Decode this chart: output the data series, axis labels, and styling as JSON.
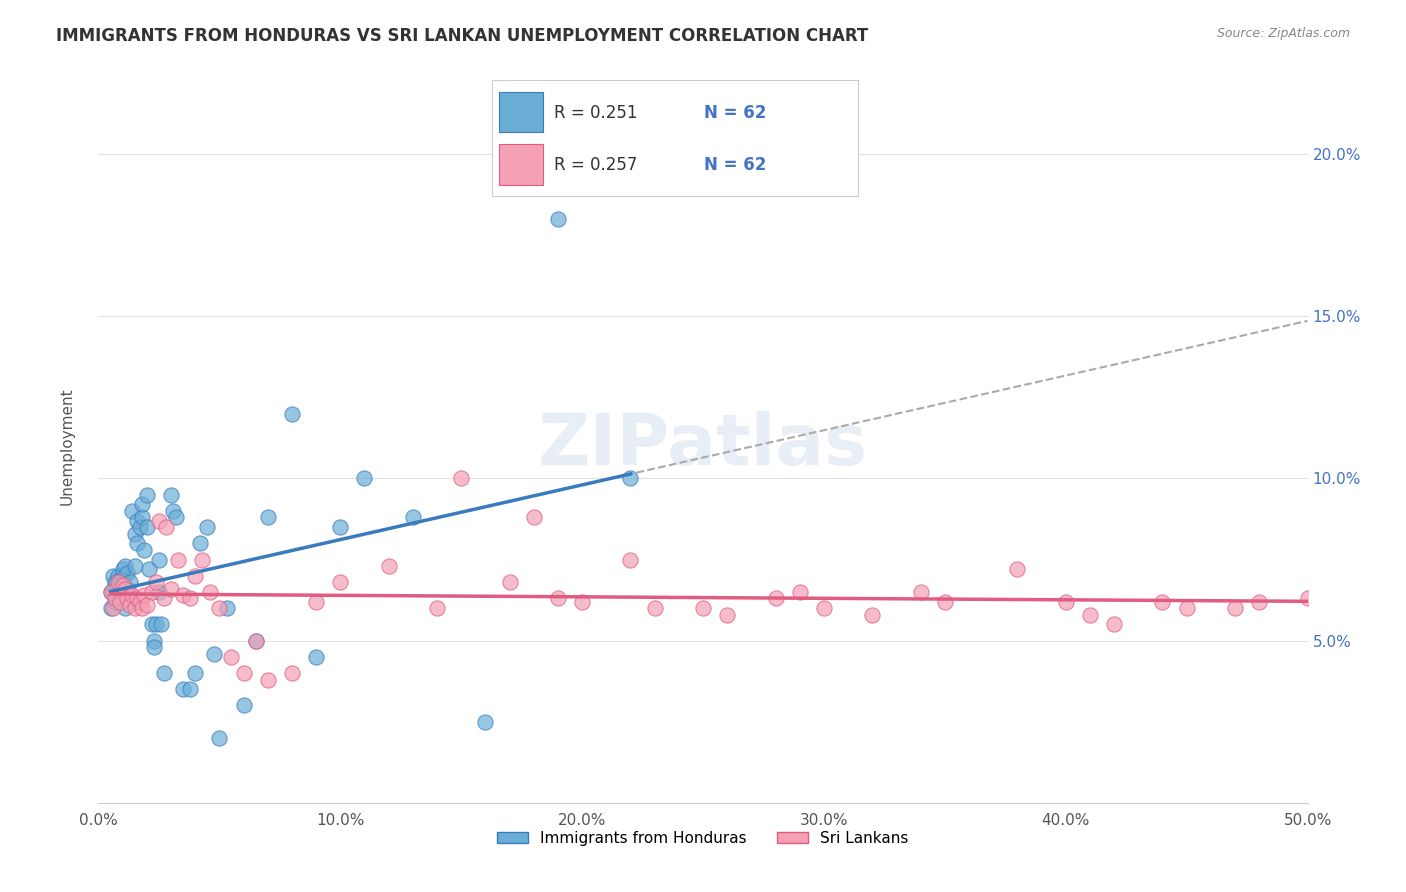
{
  "title": "IMMIGRANTS FROM HONDURAS VS SRI LANKAN UNEMPLOYMENT CORRELATION CHART",
  "source": "Source: ZipAtlas.com",
  "xlabel": "",
  "ylabel": "Unemployment",
  "legend_label1": "Immigrants from Honduras",
  "legend_label2": "Sri Lankans",
  "legend_r1": "R = 0.251",
  "legend_n1": "N = 62",
  "legend_r2": "R = 0.257",
  "legend_n2": "N = 62",
  "color_blue": "#6aaed6",
  "color_pink": "#f4a0b5",
  "color_blue_line": "#3a7abf",
  "color_pink_line": "#e05c80",
  "color_dashed": "#aaaaaa",
  "xlim": [
    0.0,
    0.5
  ],
  "ylim": [
    0.0,
    0.22
  ],
  "xticks": [
    0.0,
    0.1,
    0.2,
    0.3,
    0.4,
    0.5
  ],
  "yticks": [
    0.05,
    0.1,
    0.15,
    0.2
  ],
  "background": "#ffffff",
  "watermark": "ZIPatlas",
  "blue_x": [
    0.005,
    0.005,
    0.006,
    0.006,
    0.007,
    0.007,
    0.007,
    0.008,
    0.008,
    0.009,
    0.009,
    0.009,
    0.01,
    0.01,
    0.01,
    0.011,
    0.011,
    0.012,
    0.012,
    0.013,
    0.014,
    0.015,
    0.015,
    0.016,
    0.016,
    0.017,
    0.018,
    0.018,
    0.019,
    0.02,
    0.02,
    0.021,
    0.022,
    0.023,
    0.023,
    0.024,
    0.025,
    0.025,
    0.026,
    0.027,
    0.03,
    0.031,
    0.032,
    0.035,
    0.038,
    0.04,
    0.042,
    0.045,
    0.048,
    0.05,
    0.053,
    0.06,
    0.065,
    0.07,
    0.08,
    0.09,
    0.1,
    0.11,
    0.13,
    0.16,
    0.19,
    0.22
  ],
  "blue_y": [
    0.065,
    0.06,
    0.07,
    0.065,
    0.067,
    0.068,
    0.062,
    0.07,
    0.065,
    0.069,
    0.063,
    0.068,
    0.065,
    0.07,
    0.072,
    0.073,
    0.06,
    0.071,
    0.066,
    0.068,
    0.09,
    0.083,
    0.073,
    0.087,
    0.08,
    0.085,
    0.088,
    0.092,
    0.078,
    0.085,
    0.095,
    0.072,
    0.055,
    0.05,
    0.048,
    0.055,
    0.075,
    0.065,
    0.055,
    0.04,
    0.095,
    0.09,
    0.088,
    0.035,
    0.035,
    0.04,
    0.08,
    0.085,
    0.046,
    0.02,
    0.06,
    0.03,
    0.05,
    0.088,
    0.12,
    0.045,
    0.085,
    0.1,
    0.088,
    0.025,
    0.18,
    0.1
  ],
  "pink_x": [
    0.005,
    0.006,
    0.007,
    0.008,
    0.009,
    0.01,
    0.011,
    0.012,
    0.013,
    0.014,
    0.015,
    0.016,
    0.017,
    0.018,
    0.019,
    0.02,
    0.022,
    0.024,
    0.025,
    0.027,
    0.028,
    0.03,
    0.033,
    0.035,
    0.038,
    0.04,
    0.043,
    0.046,
    0.05,
    0.055,
    0.06,
    0.065,
    0.07,
    0.08,
    0.09,
    0.1,
    0.12,
    0.14,
    0.17,
    0.2,
    0.23,
    0.26,
    0.29,
    0.32,
    0.35,
    0.38,
    0.41,
    0.44,
    0.47,
    0.5,
    0.18,
    0.22,
    0.3,
    0.34,
    0.4,
    0.42,
    0.45,
    0.48,
    0.25,
    0.28,
    0.15,
    0.19
  ],
  "pink_y": [
    0.065,
    0.06,
    0.063,
    0.068,
    0.062,
    0.067,
    0.066,
    0.063,
    0.061,
    0.064,
    0.06,
    0.063,
    0.062,
    0.06,
    0.064,
    0.061,
    0.065,
    0.068,
    0.087,
    0.063,
    0.085,
    0.066,
    0.075,
    0.064,
    0.063,
    0.07,
    0.075,
    0.065,
    0.06,
    0.045,
    0.04,
    0.05,
    0.038,
    0.04,
    0.062,
    0.068,
    0.073,
    0.06,
    0.068,
    0.062,
    0.06,
    0.058,
    0.065,
    0.058,
    0.062,
    0.072,
    0.058,
    0.062,
    0.06,
    0.063,
    0.088,
    0.075,
    0.06,
    0.065,
    0.062,
    0.055,
    0.06,
    0.062,
    0.06,
    0.063,
    0.1,
    0.063
  ]
}
